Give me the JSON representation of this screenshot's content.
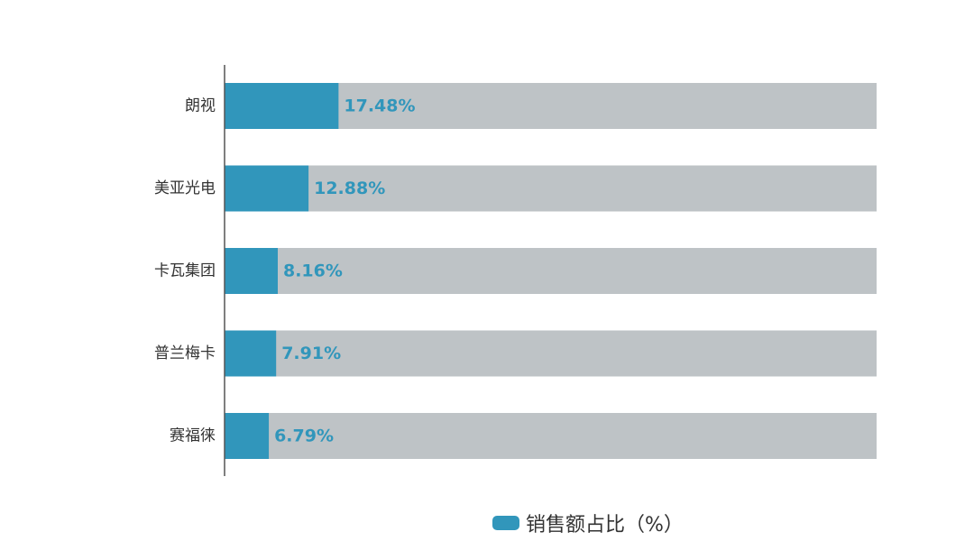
{
  "chart_data": {
    "type": "bar",
    "orientation": "horizontal",
    "categories": [
      "朗视",
      "美亚光电",
      "卡瓦集团",
      "普兰梅卡",
      "赛福徕"
    ],
    "series": [
      {
        "name": "销售额占比（%）",
        "values": [
          17.48,
          12.88,
          8.16,
          7.91,
          6.79
        ],
        "labels": [
          "17.48%",
          "12.88%",
          "8.16%",
          "7.91%",
          "6.79%"
        ]
      }
    ],
    "xlim": [
      0,
      100
    ],
    "grid": false,
    "legend_position": "bottom"
  },
  "colors": {
    "bar": "#3196BB",
    "track": "#BEC3C6",
    "value_label": "#3196BB",
    "axis": "#555555"
  }
}
